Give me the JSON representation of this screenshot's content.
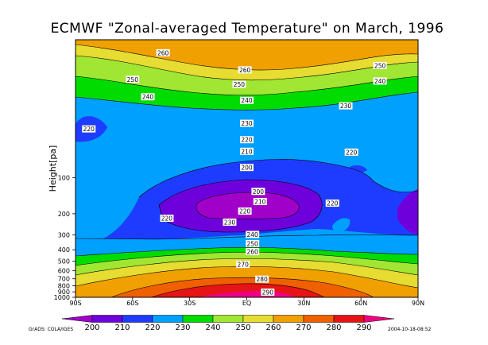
{
  "chart_data": {
    "type": "heatmap",
    "title": "ECMWF \"Zonal-averaged Temperature\" on March, 1996",
    "ylabel": "Height[pa]",
    "xlabel": "",
    "x_ticks": [
      "90S",
      "60S",
      "30S",
      "EQ",
      "30N",
      "60N",
      "90N"
    ],
    "y_ticks": [
      "100",
      "200",
      "300",
      "400",
      "500",
      "600",
      "700",
      "800",
      "900",
      "1000"
    ],
    "colorbar_levels": [
      200,
      210,
      220,
      230,
      240,
      250,
      260,
      270,
      280,
      290
    ],
    "colorbar_colors": [
      "#a000c8",
      "#6e00dc",
      "#1e3cff",
      "#00a0ff",
      "#00dc00",
      "#a0e632",
      "#e6dc32",
      "#f0a000",
      "#f06000",
      "#e61414",
      "#f00082"
    ],
    "contour_labels": [
      {
        "text": "260",
        "lat": -44,
        "p": 9
      },
      {
        "text": "260",
        "lat": -1,
        "p": 12.5
      },
      {
        "text": "250",
        "lat": 70,
        "p": 11.5
      },
      {
        "text": "250",
        "lat": -60,
        "p": 15
      },
      {
        "text": "250",
        "lat": -4,
        "p": 16.5
      },
      {
        "text": "240",
        "lat": 70,
        "p": 15.5
      },
      {
        "text": "240",
        "lat": -52,
        "p": 21
      },
      {
        "text": "240",
        "lat": 0,
        "p": 22.5
      },
      {
        "text": "230",
        "lat": 52,
        "p": 25
      },
      {
        "text": "230",
        "lat": 0,
        "p": 35
      },
      {
        "text": "220",
        "lat": -83,
        "p": 39
      },
      {
        "text": "220",
        "lat": 0,
        "p": 48
      },
      {
        "text": "210",
        "lat": 0,
        "p": 60
      },
      {
        "text": "220",
        "lat": 55,
        "p": 61
      },
      {
        "text": "200",
        "lat": 0,
        "p": 82
      },
      {
        "text": "200",
        "lat": 6,
        "p": 130
      },
      {
        "text": "210",
        "lat": 7,
        "p": 158
      },
      {
        "text": "220",
        "lat": 45,
        "p": 163
      },
      {
        "text": "220",
        "lat": -1,
        "p": 190
      },
      {
        "text": "220",
        "lat": -42,
        "p": 218
      },
      {
        "text": "230",
        "lat": -9,
        "p": 235
      },
      {
        "text": "240",
        "lat": 3,
        "p": 298
      },
      {
        "text": "250",
        "lat": 3,
        "p": 355
      },
      {
        "text": "260",
        "lat": 3,
        "p": 415
      },
      {
        "text": "270",
        "lat": -2,
        "p": 530
      },
      {
        "text": "280",
        "lat": 8,
        "p": 705
      },
      {
        "text": "290",
        "lat": 11,
        "p": 905
      }
    ]
  },
  "footer": {
    "left": "GrADS: COLA/IGES",
    "right": "2004-10-18-08:52"
  }
}
